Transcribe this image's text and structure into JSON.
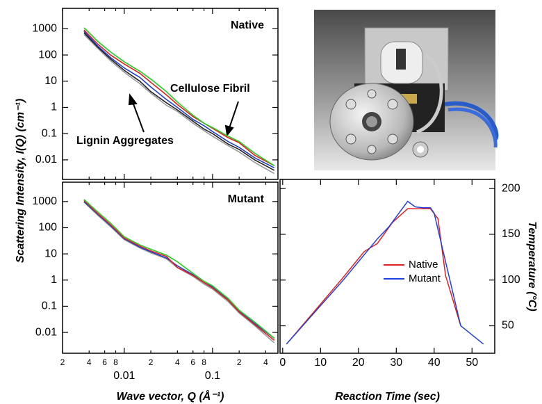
{
  "chart_data": [
    {
      "type": "line",
      "xlog": true,
      "ylog": true,
      "ylabel": "Scattering Intensity, I(Q) (cm⁻¹)",
      "annotations": [
        "Native",
        "Cellulose Fibril",
        "Lignin Aggregates"
      ],
      "x": [
        0.0035,
        0.005,
        0.007,
        0.01,
        0.015,
        0.02,
        0.03,
        0.04,
        0.06,
        0.08,
        0.1,
        0.15,
        0.2,
        0.3,
        0.5
      ],
      "xlim": [
        0.002,
        0.55
      ],
      "ylim": [
        0.0018,
        6000
      ],
      "yticks": [
        1000,
        100,
        10,
        1,
        0.1,
        0.01
      ],
      "series": [
        {
          "color": "#9a9a9a",
          "values": [
            600,
            180,
            60,
            22,
            8,
            3.5,
            1.2,
            0.7,
            0.25,
            0.13,
            0.08,
            0.035,
            0.02,
            0.008,
            0.003
          ]
        },
        {
          "color": "#222222",
          "values": [
            700,
            200,
            70,
            26,
            10,
            4,
            1.5,
            0.8,
            0.3,
            0.15,
            0.1,
            0.04,
            0.025,
            0.01,
            0.004
          ]
        },
        {
          "color": "#2040d0",
          "values": [
            800,
            220,
            80,
            32,
            14,
            6,
            2,
            1,
            0.35,
            0.2,
            0.12,
            0.05,
            0.03,
            0.012,
            0.005
          ]
        },
        {
          "color": "#e02020",
          "values": [
            900,
            260,
            100,
            45,
            20,
            9,
            3,
            1.3,
            0.45,
            0.25,
            0.16,
            0.07,
            0.045,
            0.015,
            0.006
          ]
        },
        {
          "color": "#20d020",
          "values": [
            1100,
            330,
            130,
            55,
            24,
            12,
            4,
            1.6,
            0.5,
            0.25,
            0.17,
            0.08,
            0.05,
            0.018,
            0.006
          ]
        }
      ]
    },
    {
      "type": "line",
      "xlog": true,
      "ylog": true,
      "xlabel": "Wave vector, Q (Å⁻¹)",
      "annotations": [
        "Mutant"
      ],
      "x": [
        0.0035,
        0.005,
        0.007,
        0.01,
        0.015,
        0.02,
        0.03,
        0.04,
        0.06,
        0.08,
        0.1,
        0.15,
        0.2,
        0.3,
        0.5
      ],
      "xlim": [
        0.002,
        0.55
      ],
      "ylim": [
        0.0016,
        5500
      ],
      "yticks": [
        1000,
        100,
        10,
        1,
        0.1,
        0.01
      ],
      "xticks": [
        {
          "value": 0.002,
          "label": "2"
        },
        {
          "value": 0.004,
          "label": "4"
        },
        {
          "value": 0.006,
          "label": "6"
        },
        {
          "value": 0.008,
          "label": "8"
        },
        0.01,
        {
          "value": 0.02,
          "label": "2"
        },
        {
          "value": 0.04,
          "label": "4"
        },
        {
          "value": 0.06,
          "label": "6"
        },
        {
          "value": 0.08,
          "label": "8"
        },
        0.1,
        {
          "value": 0.2,
          "label": "2"
        },
        {
          "value": 0.4,
          "label": "4"
        }
      ],
      "series": [
        {
          "color": "#9a9a9a",
          "values": [
            950,
            300,
            110,
            35,
            17,
            11,
            6.5,
            3,
            1.4,
            0.7,
            0.45,
            0.15,
            0.055,
            0.018,
            0.004
          ]
        },
        {
          "color": "#2040d0",
          "values": [
            1000,
            330,
            120,
            38,
            18,
            12,
            7,
            3.5,
            1.6,
            0.8,
            0.55,
            0.18,
            0.065,
            0.022,
            0.006
          ]
        },
        {
          "color": "#e02020",
          "values": [
            1100,
            350,
            130,
            40,
            20,
            13,
            8,
            3,
            1.5,
            0.8,
            0.5,
            0.17,
            0.06,
            0.02,
            0.005
          ]
        },
        {
          "color": "#20d020",
          "values": [
            1200,
            400,
            150,
            45,
            22,
            15,
            9,
            5,
            1.8,
            0.9,
            0.6,
            0.2,
            0.07,
            0.025,
            0.006
          ]
        }
      ]
    },
    {
      "type": "line",
      "xlabel": "Reaction Time (sec)",
      "y2label": "Temperature (°C)",
      "xlim": [
        -0.7,
        56
      ],
      "y2lim": [
        20,
        210
      ],
      "xticks": [
        0,
        10,
        20,
        30,
        40,
        50
      ],
      "y2ticks": [
        50,
        100,
        150,
        200
      ],
      "series": [
        {
          "name": "Native",
          "color": "#e02020",
          "axis": "y2",
          "x": [
            1,
            16,
            21.5,
            25,
            29,
            33,
            36,
            39,
            41,
            43,
            47
          ],
          "values": [
            30,
            103,
            131,
            140,
            163,
            178,
            178,
            178,
            167,
            105,
            50
          ]
        },
        {
          "name": "Mutant",
          "color": "#2040e0",
          "axis": "y2",
          "x": [
            1,
            16,
            21,
            25,
            28,
            33,
            35,
            37,
            39,
            40,
            47,
            53
          ],
          "values": [
            30,
            100,
            125,
            145,
            158,
            186,
            180,
            179,
            179,
            173,
            50,
            30
          ]
        }
      ]
    }
  ]
}
